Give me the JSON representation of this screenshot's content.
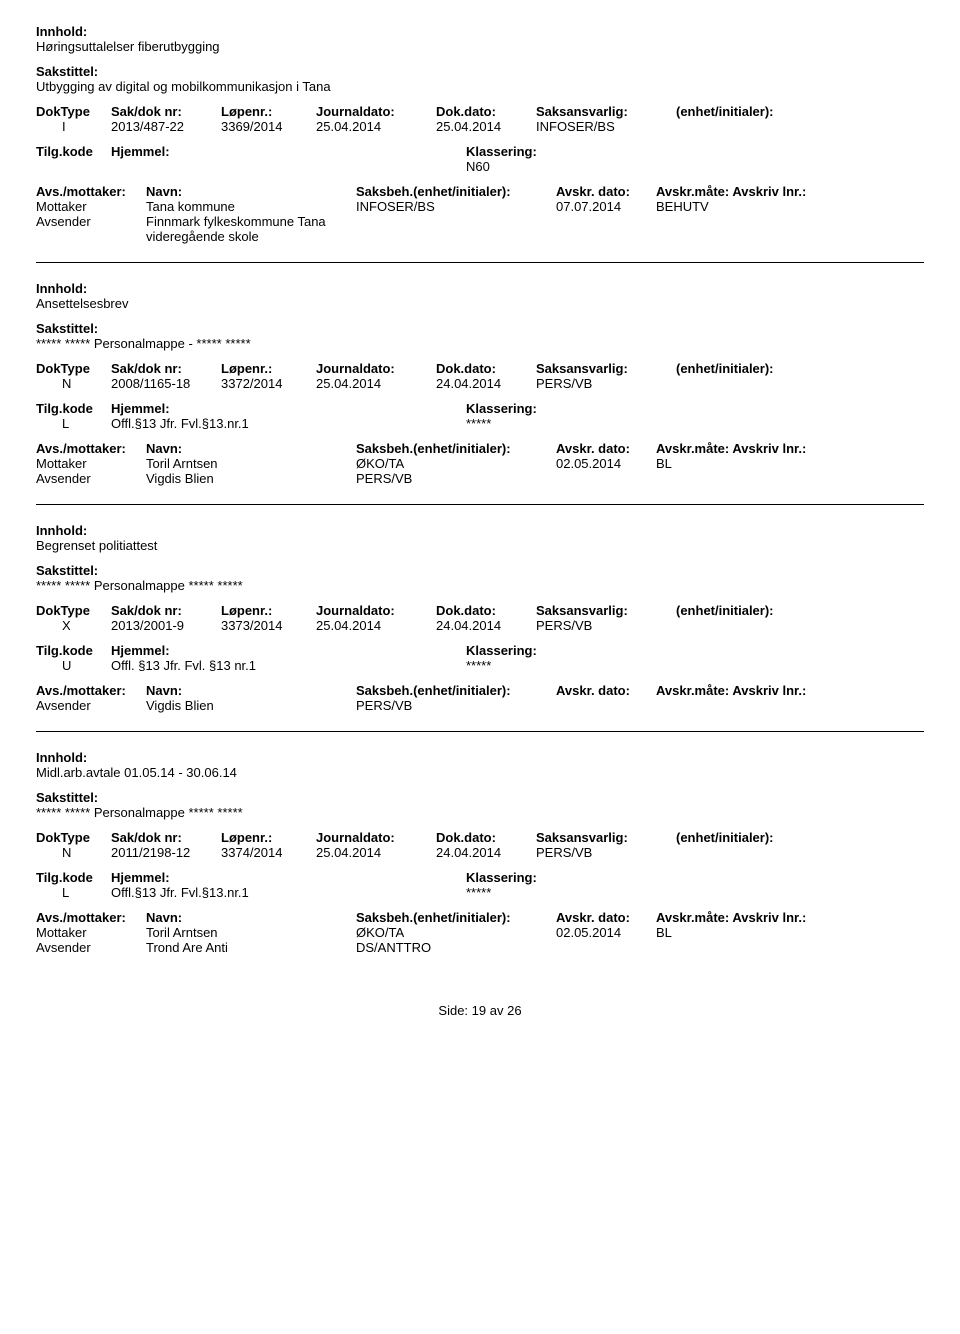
{
  "labels": {
    "innhold": "Innhold:",
    "sakstittel": "Sakstittel:",
    "doktype": "DokType",
    "sakdoknr": "Sak/dok nr:",
    "lopenr": "Løpenr.:",
    "journaldato": "Journaldato:",
    "dokdato": "Dok.dato:",
    "saksansvarlig": "Saksansvarlig:",
    "enhet": "(enhet/initialer):",
    "tilgkode": "Tilg.kode",
    "hjemmel": "Hjemmel:",
    "klassering": "Klassering:",
    "avsmottaker": "Avs./mottaker:",
    "navn": "Navn:",
    "saksbeh": "Saksbeh.(enhet/initialer):",
    "avskrdato": "Avskr. dato:",
    "avskrmate": "Avskr.måte:",
    "avskrivlnr": "Avskriv lnr.:"
  },
  "footer": {
    "side": "Side:",
    "page": "19",
    "av": "av",
    "total": "26"
  },
  "entries": [
    {
      "innhold": "Høringsuttalelser fiberutbygging",
      "sakstittel": "Utbygging av digital og mobilkommunikasjon i Tana",
      "doktype": "I",
      "sakdoknr": "2013/487-22",
      "lopenr": "3369/2014",
      "journaldato": "25.04.2014",
      "dokdato": "25.04.2014",
      "saksansvarlig": "INFOSER/BS",
      "tilgkode": "",
      "hjemmel": "",
      "klassering": "N60",
      "parties": [
        {
          "role": "Mottaker",
          "navn": "Tana kommune",
          "saksbeh": "INFOSER/BS",
          "adato": "07.07.2014",
          "amate": "BEHUTV"
        },
        {
          "role": "Avsender",
          "navn": "Finnmark fylkeskommune Tana videregående skole",
          "saksbeh": "",
          "adato": "",
          "amate": ""
        }
      ]
    },
    {
      "innhold": "Ansettelsesbrev",
      "sakstittel": "***** ***** Personalmappe - ***** *****",
      "doktype": "N",
      "sakdoknr": "2008/1165-18",
      "lopenr": "3372/2014",
      "journaldato": "25.04.2014",
      "dokdato": "24.04.2014",
      "saksansvarlig": "PERS/VB",
      "tilgkode": "L",
      "hjemmel": "Offl.§13 Jfr. Fvl.§13.nr.1",
      "klassering": "*****",
      "parties": [
        {
          "role": "Mottaker",
          "navn": "Toril Arntsen",
          "saksbeh": "ØKO/TA",
          "adato": "02.05.2014",
          "amate": "BL"
        },
        {
          "role": "Avsender",
          "navn": "Vigdis Blien",
          "saksbeh": "PERS/VB",
          "adato": "",
          "amate": ""
        }
      ]
    },
    {
      "innhold": "Begrenset politiattest",
      "sakstittel": "***** ***** Personalmappe ***** *****",
      "doktype": "X",
      "sakdoknr": "2013/2001-9",
      "lopenr": "3373/2014",
      "journaldato": "25.04.2014",
      "dokdato": "24.04.2014",
      "saksansvarlig": "PERS/VB",
      "tilgkode": "U",
      "hjemmel": "Offl. §13 Jfr. Fvl. §13 nr.1",
      "klassering": "*****",
      "parties": [
        {
          "role": "Avsender",
          "navn": "Vigdis Blien",
          "saksbeh": "PERS/VB",
          "adato": "",
          "amate": ""
        }
      ]
    },
    {
      "innhold": "Midl.arb.avtale 01.05.14 - 30.06.14",
      "sakstittel": "***** ***** Personalmappe ***** *****",
      "doktype": "N",
      "sakdoknr": "2011/2198-12",
      "lopenr": "3374/2014",
      "journaldato": "25.04.2014",
      "dokdato": "24.04.2014",
      "saksansvarlig": "PERS/VB",
      "tilgkode": "L",
      "hjemmel": "Offl.§13 Jfr. Fvl.§13.nr.1",
      "klassering": "*****",
      "parties": [
        {
          "role": "Mottaker",
          "navn": "Toril Arntsen",
          "saksbeh": "ØKO/TA",
          "adato": "02.05.2014",
          "amate": "BL"
        },
        {
          "role": "Avsender",
          "navn": "Trond Are Anti",
          "saksbeh": "DS/ANTTRO",
          "adato": "",
          "amate": ""
        }
      ]
    }
  ]
}
